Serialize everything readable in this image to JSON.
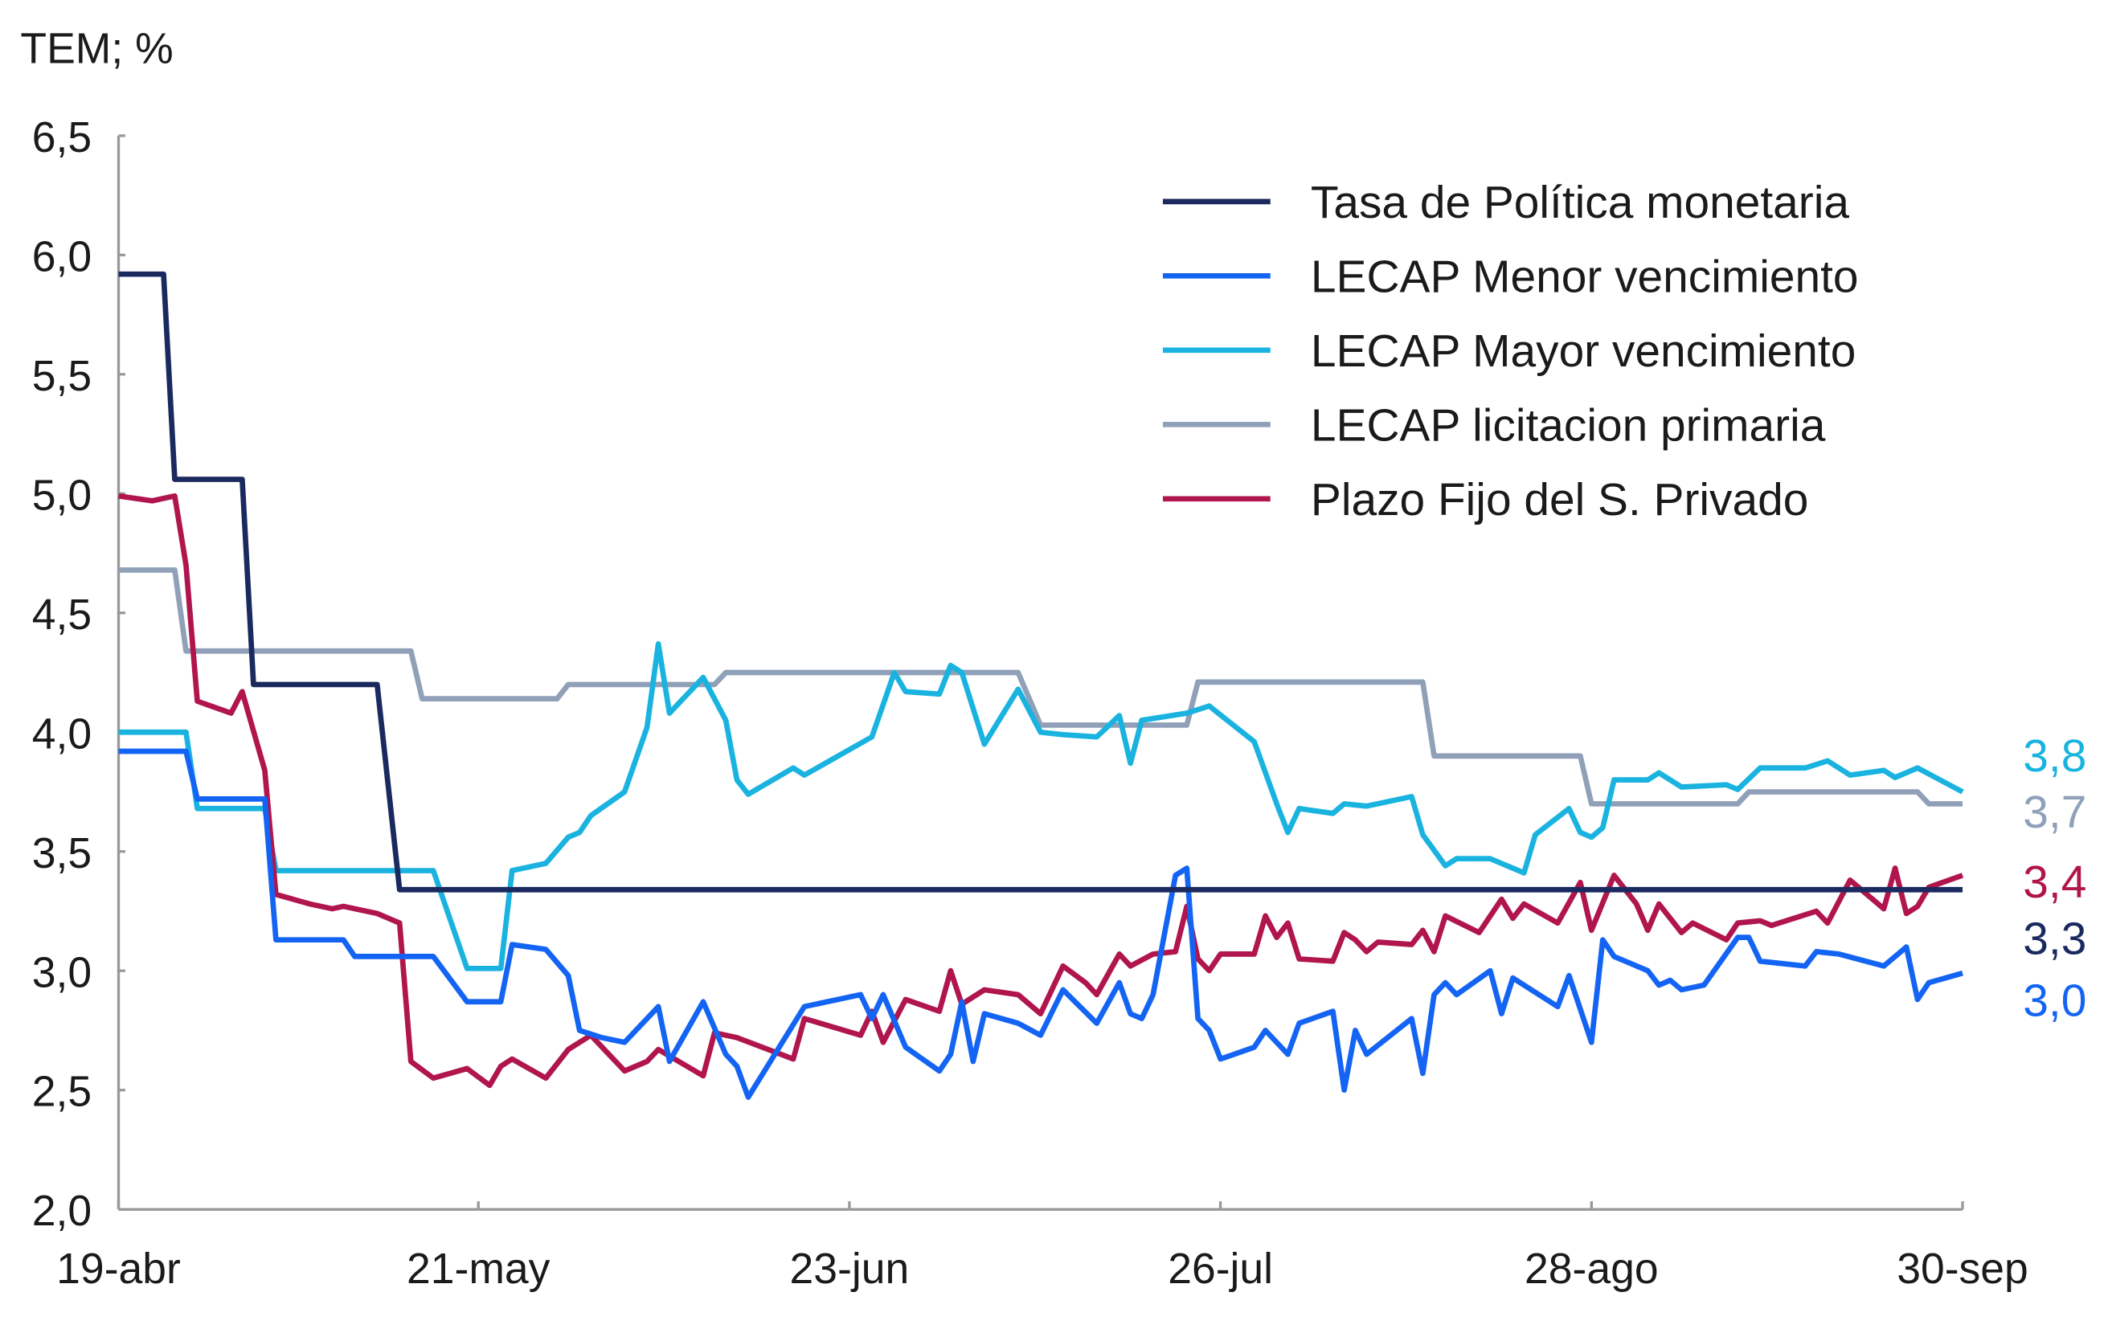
{
  "chart_data": {
    "type": "line",
    "title": "",
    "ylabel": "TEM; %",
    "xlabel": "",
    "ylim": [
      2.0,
      6.5
    ],
    "xlim": [
      "19-abr",
      "30-sep"
    ],
    "y_ticks": [
      "6,5",
      "6,0",
      "5,5",
      "5,0",
      "4,5",
      "4,0",
      "3,5",
      "3,0",
      "2,5",
      "2,0"
    ],
    "y_tick_values": [
      6.5,
      6.0,
      5.5,
      5.0,
      4.5,
      4.0,
      3.5,
      3.0,
      2.5,
      2.0
    ],
    "x_ticks": [
      "19-abr",
      "21-may",
      "23-jun",
      "26-jul",
      "28-ago",
      "30-sep"
    ],
    "grid": false,
    "legend_placement": "top-right",
    "series": [
      {
        "name": "Tasa de Política monetaria",
        "color": "#1b2a5e",
        "end_label": "3,3",
        "points": [
          [
            "19-abr",
            5.92
          ],
          [
            "23-abr",
            5.92
          ],
          [
            "24-abr",
            5.06
          ],
          [
            "30-abr",
            5.06
          ],
          [
            "01-may",
            4.2
          ],
          [
            "12-may",
            4.2
          ],
          [
            "14-may",
            3.34
          ],
          [
            "30-sep",
            3.34
          ]
        ]
      },
      {
        "name": "LECAP Menor vencimiento",
        "color": "#1464f4",
        "end_label": "3,0",
        "points": [
          [
            "19-abr",
            3.92
          ],
          [
            "25-abr",
            3.92
          ],
          [
            "26-abr",
            3.72
          ],
          [
            "02-may",
            3.72
          ],
          [
            "03-may",
            3.13
          ],
          [
            "09-may",
            3.13
          ],
          [
            "10-may",
            3.06
          ],
          [
            "17-may",
            3.06
          ],
          [
            "20-may",
            2.87
          ],
          [
            "23-may",
            2.87
          ],
          [
            "24-may",
            3.11
          ],
          [
            "27-may",
            3.09
          ],
          [
            "29-may",
            2.98
          ],
          [
            "30-may",
            2.75
          ],
          [
            "01-jun",
            2.72
          ],
          [
            "03-jun",
            2.7
          ],
          [
            "05-jun",
            2.8
          ],
          [
            "06-jun",
            2.85
          ],
          [
            "07-jun",
            2.62
          ],
          [
            "10-jun",
            2.87
          ],
          [
            "12-jun",
            2.65
          ],
          [
            "13-jun",
            2.6
          ],
          [
            "14-jun",
            2.47
          ],
          [
            "19-jun",
            2.85
          ],
          [
            "24-jun",
            2.9
          ],
          [
            "25-jun",
            2.8
          ],
          [
            "26-jun",
            2.9
          ],
          [
            "28-jun",
            2.68
          ],
          [
            "01-jul",
            2.58
          ],
          [
            "02-jul",
            2.65
          ],
          [
            "03-jul",
            2.87
          ],
          [
            "04-jul",
            2.62
          ],
          [
            "05-jul",
            2.82
          ],
          [
            "08-jul",
            2.78
          ],
          [
            "10-jul",
            2.73
          ],
          [
            "12-jul",
            2.92
          ],
          [
            "15-jul",
            2.78
          ],
          [
            "17-jul",
            2.95
          ],
          [
            "18-jul",
            2.82
          ],
          [
            "19-jul",
            2.8
          ],
          [
            "20-jul",
            2.9
          ],
          [
            "22-jul",
            3.4
          ],
          [
            "23-jul",
            3.43
          ],
          [
            "24-jul",
            2.8
          ],
          [
            "25-jul",
            2.75
          ],
          [
            "26-jul",
            2.63
          ],
          [
            "29-jul",
            2.68
          ],
          [
            "30-jul",
            2.75
          ],
          [
            "01-ago",
            2.65
          ],
          [
            "02-ago",
            2.78
          ],
          [
            "05-ago",
            2.83
          ],
          [
            "06-ago",
            2.5
          ],
          [
            "07-ago",
            2.75
          ],
          [
            "08-ago",
            2.65
          ],
          [
            "12-ago",
            2.8
          ],
          [
            "13-ago",
            2.57
          ],
          [
            "14-ago",
            2.9
          ],
          [
            "15-ago",
            2.95
          ],
          [
            "16-ago",
            2.9
          ],
          [
            "19-ago",
            3.0
          ],
          [
            "20-ago",
            2.82
          ],
          [
            "21-ago",
            2.97
          ],
          [
            "25-ago",
            2.85
          ],
          [
            "26-ago",
            2.98
          ],
          [
            "28-ago",
            2.7
          ],
          [
            "29-ago",
            3.13
          ],
          [
            "30-ago",
            3.06
          ],
          [
            "02-sep",
            3.0
          ],
          [
            "03-sep",
            2.94
          ],
          [
            "04-sep",
            2.96
          ],
          [
            "05-sep",
            2.92
          ],
          [
            "07-sep",
            2.94
          ],
          [
            "10-sep",
            3.14
          ],
          [
            "11-sep",
            3.14
          ],
          [
            "12-sep",
            3.04
          ],
          [
            "16-sep",
            3.02
          ],
          [
            "17-sep",
            3.08
          ],
          [
            "19-sep",
            3.07
          ],
          [
            "23-sep",
            3.02
          ],
          [
            "25-sep",
            3.1
          ],
          [
            "26-sep",
            2.88
          ],
          [
            "27-sep",
            2.95
          ],
          [
            "30-sep",
            2.99
          ]
        ]
      },
      {
        "name": "LECAP Mayor vencimiento",
        "color": "#1ab3e0",
        "end_label": "3,8",
        "points": [
          [
            "19-abr",
            4.0
          ],
          [
            "25-abr",
            4.0
          ],
          [
            "26-abr",
            3.68
          ],
          [
            "02-may",
            3.68
          ],
          [
            "03-may",
            3.42
          ],
          [
            "17-may",
            3.42
          ],
          [
            "20-may",
            3.01
          ],
          [
            "23-may",
            3.01
          ],
          [
            "24-may",
            3.42
          ],
          [
            "27-may",
            3.45
          ],
          [
            "29-may",
            3.56
          ],
          [
            "30-may",
            3.58
          ],
          [
            "31-may",
            3.65
          ],
          [
            "03-jun",
            3.75
          ],
          [
            "05-jun",
            4.02
          ],
          [
            "06-jun",
            4.37
          ],
          [
            "07-jun",
            4.08
          ],
          [
            "10-jun",
            4.23
          ],
          [
            "12-jun",
            4.05
          ],
          [
            "13-jun",
            3.8
          ],
          [
            "14-jun",
            3.74
          ],
          [
            "18-jun",
            3.85
          ],
          [
            "19-jun",
            3.82
          ],
          [
            "25-jun",
            3.98
          ],
          [
            "27-jun",
            4.25
          ],
          [
            "28-jun",
            4.17
          ],
          [
            "01-jul",
            4.16
          ],
          [
            "02-jul",
            4.28
          ],
          [
            "03-jul",
            4.25
          ],
          [
            "05-jul",
            3.95
          ],
          [
            "08-jul",
            4.18
          ],
          [
            "10-jul",
            4.0
          ],
          [
            "12-jul",
            3.99
          ],
          [
            "15-jul",
            3.98
          ],
          [
            "17-jul",
            4.07
          ],
          [
            "18-jul",
            3.87
          ],
          [
            "19-jul",
            4.05
          ],
          [
            "23-jul",
            4.08
          ],
          [
            "25-jul",
            4.11
          ],
          [
            "29-jul",
            3.96
          ],
          [
            "31-jul",
            3.7
          ],
          [
            "01-ago",
            3.58
          ],
          [
            "02-ago",
            3.68
          ],
          [
            "05-ago",
            3.66
          ],
          [
            "06-ago",
            3.7
          ],
          [
            "08-ago",
            3.69
          ],
          [
            "12-ago",
            3.73
          ],
          [
            "13-ago",
            3.57
          ],
          [
            "15-ago",
            3.44
          ],
          [
            "16-ago",
            3.47
          ],
          [
            "19-ago",
            3.47
          ],
          [
            "22-ago",
            3.41
          ],
          [
            "23-ago",
            3.57
          ],
          [
            "26-ago",
            3.68
          ],
          [
            "27-ago",
            3.58
          ],
          [
            "28-ago",
            3.56
          ],
          [
            "29-ago",
            3.6
          ],
          [
            "30-ago",
            3.8
          ],
          [
            "02-sep",
            3.8
          ],
          [
            "03-sep",
            3.83
          ],
          [
            "05-sep",
            3.77
          ],
          [
            "09-sep",
            3.78
          ],
          [
            "10-sep",
            3.76
          ],
          [
            "12-sep",
            3.85
          ],
          [
            "16-sep",
            3.85
          ],
          [
            "18-sep",
            3.88
          ],
          [
            "20-sep",
            3.82
          ],
          [
            "23-sep",
            3.84
          ],
          [
            "24-sep",
            3.81
          ],
          [
            "26-sep",
            3.85
          ],
          [
            "30-sep",
            3.75
          ]
        ]
      },
      {
        "name": "LECAP licitacion primaria",
        "color": "#8fa0b8",
        "end_label": "3,7",
        "points": [
          [
            "19-abr",
            4.68
          ],
          [
            "24-abr",
            4.68
          ],
          [
            "25-abr",
            4.34
          ],
          [
            "15-may",
            4.34
          ],
          [
            "16-may",
            4.14
          ],
          [
            "28-may",
            4.14
          ],
          [
            "29-may",
            4.2
          ],
          [
            "11-jun",
            4.2
          ],
          [
            "12-jun",
            4.25
          ],
          [
            "08-jul",
            4.25
          ],
          [
            "10-jul",
            4.03
          ],
          [
            "23-jul",
            4.03
          ],
          [
            "24-jul",
            4.21
          ],
          [
            "13-ago",
            4.21
          ],
          [
            "14-ago",
            3.9
          ],
          [
            "27-ago",
            3.9
          ],
          [
            "28-ago",
            3.7
          ],
          [
            "10-sep",
            3.7
          ],
          [
            "11-sep",
            3.75
          ],
          [
            "26-sep",
            3.75
          ],
          [
            "27-sep",
            3.7
          ],
          [
            "30-sep",
            3.7
          ]
        ]
      },
      {
        "name": "Plazo Fijo del S. Privado",
        "color": "#b0154d",
        "end_label": "3,4",
        "points": [
          [
            "19-abr",
            4.99
          ],
          [
            "22-abr",
            4.97
          ],
          [
            "24-abr",
            4.99
          ],
          [
            "25-abr",
            4.7
          ],
          [
            "26-abr",
            4.13
          ],
          [
            "29-abr",
            4.08
          ],
          [
            "30-abr",
            4.17
          ],
          [
            "02-may",
            3.84
          ],
          [
            "03-may",
            3.32
          ],
          [
            "06-may",
            3.28
          ],
          [
            "08-may",
            3.26
          ],
          [
            "09-may",
            3.27
          ],
          [
            "12-may",
            3.24
          ],
          [
            "14-may",
            3.2
          ],
          [
            "15-may",
            2.62
          ],
          [
            "17-may",
            2.55
          ],
          [
            "20-may",
            2.59
          ],
          [
            "22-may",
            2.52
          ],
          [
            "23-may",
            2.6
          ],
          [
            "24-may",
            2.63
          ],
          [
            "27-may",
            2.55
          ],
          [
            "29-may",
            2.67
          ],
          [
            "31-may",
            2.73
          ],
          [
            "03-jun",
            2.58
          ],
          [
            "05-jun",
            2.62
          ],
          [
            "06-jun",
            2.67
          ],
          [
            "10-jun",
            2.56
          ],
          [
            "11-jun",
            2.74
          ],
          [
            "13-jun",
            2.72
          ],
          [
            "18-jun",
            2.63
          ],
          [
            "19-jun",
            2.8
          ],
          [
            "24-jun",
            2.73
          ],
          [
            "25-jun",
            2.83
          ],
          [
            "26-jun",
            2.7
          ],
          [
            "28-jun",
            2.88
          ],
          [
            "01-jul",
            2.83
          ],
          [
            "02-jul",
            3.0
          ],
          [
            "03-jul",
            2.86
          ],
          [
            "05-jul",
            2.92
          ],
          [
            "08-jul",
            2.9
          ],
          [
            "10-jul",
            2.82
          ],
          [
            "12-jul",
            3.02
          ],
          [
            "14-jul",
            2.95
          ],
          [
            "15-jul",
            2.9
          ],
          [
            "17-jul",
            3.07
          ],
          [
            "18-jul",
            3.02
          ],
          [
            "20-jul",
            3.07
          ],
          [
            "22-jul",
            3.08
          ],
          [
            "23-jul",
            3.27
          ],
          [
            "24-jul",
            3.05
          ],
          [
            "25-jul",
            3.0
          ],
          [
            "26-jul",
            3.07
          ],
          [
            "29-jul",
            3.07
          ],
          [
            "30-jul",
            3.23
          ],
          [
            "31-jul",
            3.14
          ],
          [
            "01-ago",
            3.2
          ],
          [
            "02-ago",
            3.05
          ],
          [
            "05-ago",
            3.04
          ],
          [
            "06-ago",
            3.16
          ],
          [
            "07-ago",
            3.13
          ],
          [
            "08-ago",
            3.08
          ],
          [
            "09-ago",
            3.12
          ],
          [
            "12-ago",
            3.11
          ],
          [
            "13-ago",
            3.17
          ],
          [
            "14-ago",
            3.08
          ],
          [
            "15-ago",
            3.23
          ],
          [
            "18-ago",
            3.16
          ],
          [
            "20-ago",
            3.3
          ],
          [
            "21-ago",
            3.22
          ],
          [
            "22-ago",
            3.28
          ],
          [
            "25-ago",
            3.2
          ],
          [
            "27-ago",
            3.37
          ],
          [
            "28-ago",
            3.17
          ],
          [
            "30-ago",
            3.4
          ],
          [
            "01-sep",
            3.28
          ],
          [
            "02-sep",
            3.17
          ],
          [
            "03-sep",
            3.28
          ],
          [
            "05-sep",
            3.16
          ],
          [
            "06-sep",
            3.2
          ],
          [
            "09-sep",
            3.13
          ],
          [
            "10-sep",
            3.2
          ],
          [
            "12-sep",
            3.21
          ],
          [
            "13-sep",
            3.19
          ],
          [
            "17-sep",
            3.25
          ],
          [
            "18-sep",
            3.2
          ],
          [
            "20-sep",
            3.38
          ],
          [
            "22-sep",
            3.3
          ],
          [
            "23-sep",
            3.26
          ],
          [
            "24-sep",
            3.43
          ],
          [
            "25-sep",
            3.24
          ],
          [
            "26-sep",
            3.27
          ],
          [
            "27-sep",
            3.35
          ],
          [
            "30-sep",
            3.4
          ]
        ]
      }
    ],
    "end_label_order": [
      "LECAP Mayor vencimiento",
      "LECAP licitacion primaria",
      "Plazo Fijo del S. Privado",
      "Tasa de Política monetaria",
      "LECAP Menor vencimiento"
    ]
  }
}
